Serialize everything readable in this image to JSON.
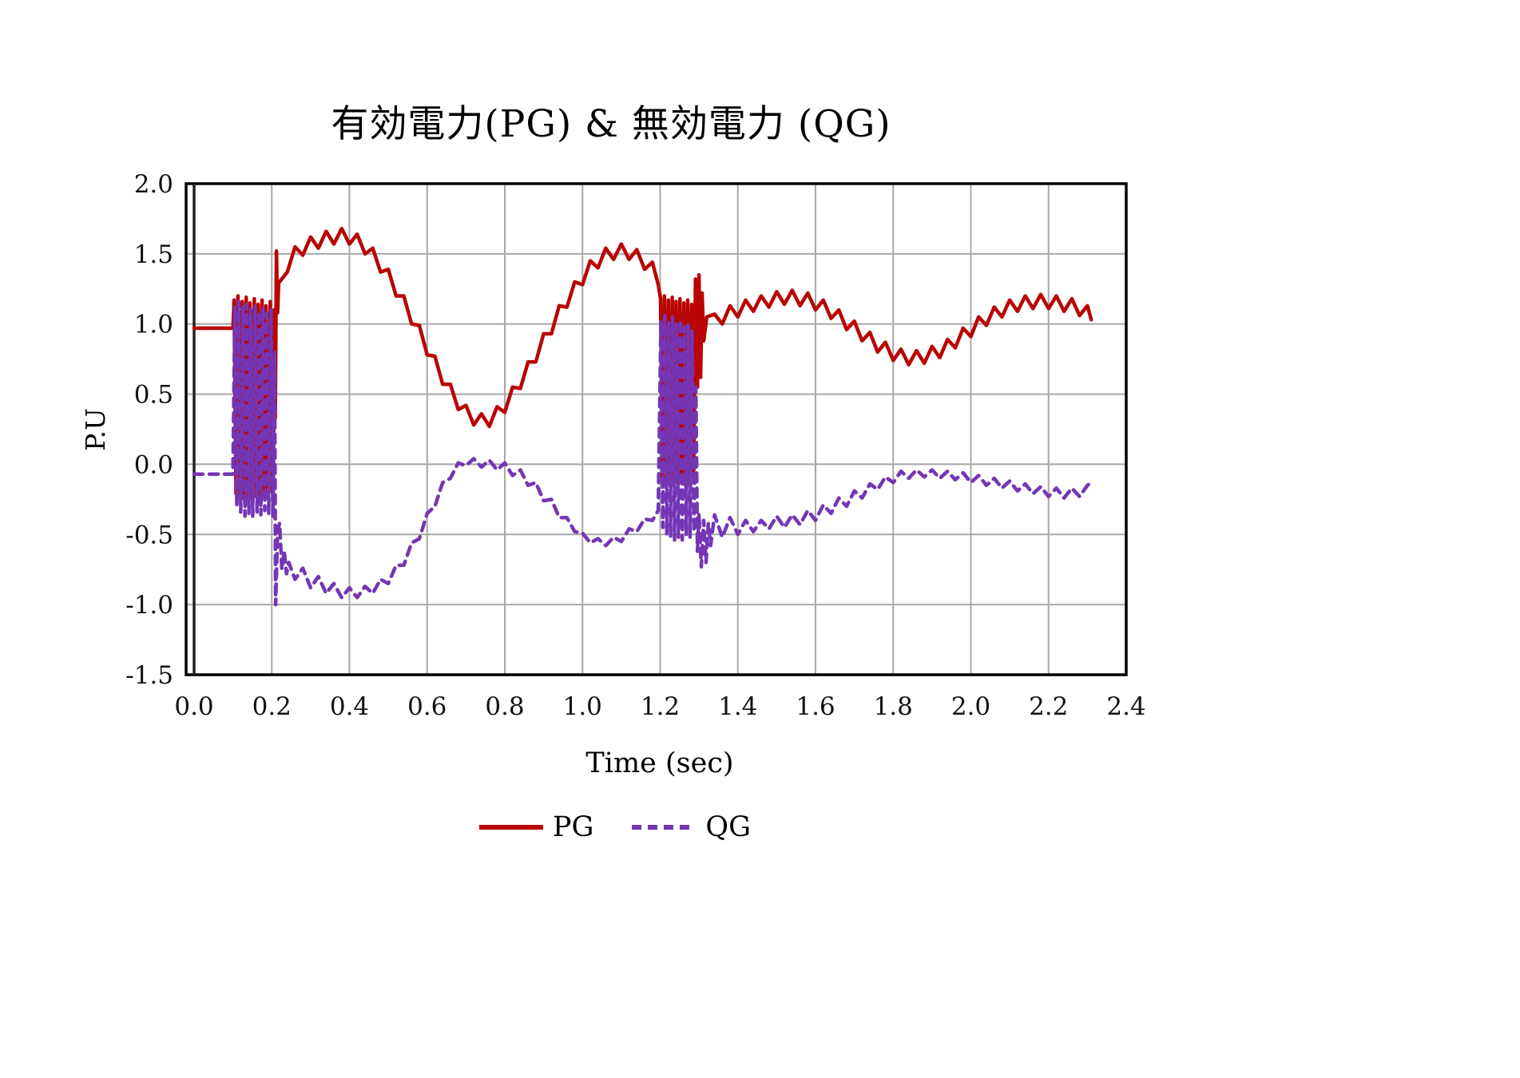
{
  "page": {
    "background": "#ffffff"
  },
  "title": "有効電力(PG) & 無効電力 (QG)",
  "chart_data": {
    "type": "line",
    "title": "有効電力(PG) & 無効電力 (QG)",
    "xlabel": "Time (sec)",
    "ylabel": "P.U",
    "xlim": [
      0.0,
      2.4
    ],
    "ylim": [
      -1.5,
      2.0
    ],
    "x_ticks": [
      "0.0",
      "0.2",
      "0.4",
      "0.6",
      "0.8",
      "1.0",
      "1.2",
      "1.4",
      "1.6",
      "1.8",
      "2.0",
      "2.2",
      "2.4"
    ],
    "y_ticks": [
      "2.0",
      "1.5",
      "1.0",
      "0.5",
      "0.0",
      "-0.5",
      "-1.0",
      "-1.5"
    ],
    "grid": true,
    "grid_color": "#a8a8a8",
    "border_color": "#000000",
    "legend_position": "bottom",
    "series": [
      {
        "name": "PG",
        "color": "#b90504",
        "style": "solid",
        "width": 4.5,
        "points": [
          [
            0.0,
            0.97
          ],
          [
            0.06,
            0.97
          ],
          [
            0.1,
            0.97
          ],
          [
            0.103,
            1.17
          ],
          [
            0.108,
            -0.21
          ],
          [
            0.113,
            1.2
          ],
          [
            0.118,
            -0.23
          ],
          [
            0.124,
            1.16
          ],
          [
            0.129,
            -0.25
          ],
          [
            0.134,
            1.19
          ],
          [
            0.139,
            -0.24
          ],
          [
            0.144,
            1.15
          ],
          [
            0.149,
            -0.25
          ],
          [
            0.155,
            1.18
          ],
          [
            0.16,
            -0.23
          ],
          [
            0.165,
            1.14
          ],
          [
            0.17,
            -0.25
          ],
          [
            0.175,
            1.17
          ],
          [
            0.18,
            -0.22
          ],
          [
            0.185,
            1.13
          ],
          [
            0.19,
            -0.24
          ],
          [
            0.196,
            1.16
          ],
          [
            0.201,
            -0.2
          ],
          [
            0.206,
            1.1
          ],
          [
            0.209,
            0.33
          ],
          [
            0.212,
            1.52
          ],
          [
            0.215,
            1.08
          ],
          [
            0.218,
            1.3
          ],
          [
            0.22,
            1.3
          ],
          [
            0.24,
            1.37
          ],
          [
            0.26,
            1.55
          ],
          [
            0.28,
            1.49
          ],
          [
            0.3,
            1.62
          ],
          [
            0.32,
            1.54
          ],
          [
            0.34,
            1.66
          ],
          [
            0.36,
            1.57
          ],
          [
            0.38,
            1.68
          ],
          [
            0.4,
            1.57
          ],
          [
            0.42,
            1.64
          ],
          [
            0.44,
            1.5
          ],
          [
            0.46,
            1.54
          ],
          [
            0.48,
            1.37
          ],
          [
            0.5,
            1.39
          ],
          [
            0.52,
            1.2
          ],
          [
            0.54,
            1.2
          ],
          [
            0.56,
            1.0
          ],
          [
            0.58,
            0.99
          ],
          [
            0.6,
            0.78
          ],
          [
            0.62,
            0.77
          ],
          [
            0.64,
            0.57
          ],
          [
            0.66,
            0.57
          ],
          [
            0.68,
            0.39
          ],
          [
            0.7,
            0.42
          ],
          [
            0.72,
            0.28
          ],
          [
            0.74,
            0.36
          ],
          [
            0.76,
            0.27
          ],
          [
            0.78,
            0.41
          ],
          [
            0.8,
            0.37
          ],
          [
            0.82,
            0.55
          ],
          [
            0.84,
            0.54
          ],
          [
            0.86,
            0.73
          ],
          [
            0.88,
            0.73
          ],
          [
            0.9,
            0.93
          ],
          [
            0.92,
            0.93
          ],
          [
            0.94,
            1.13
          ],
          [
            0.96,
            1.12
          ],
          [
            0.98,
            1.3
          ],
          [
            1.0,
            1.28
          ],
          [
            1.02,
            1.45
          ],
          [
            1.04,
            1.4
          ],
          [
            1.06,
            1.54
          ],
          [
            1.08,
            1.46
          ],
          [
            1.1,
            1.57
          ],
          [
            1.12,
            1.46
          ],
          [
            1.14,
            1.53
          ],
          [
            1.16,
            1.39
          ],
          [
            1.18,
            1.44
          ],
          [
            1.195,
            1.28
          ],
          [
            1.201,
            1.18
          ],
          [
            1.206,
            -0.1
          ],
          [
            1.211,
            1.2
          ],
          [
            1.216,
            -0.13
          ],
          [
            1.221,
            1.17
          ],
          [
            1.226,
            -0.15
          ],
          [
            1.231,
            1.19
          ],
          [
            1.236,
            -0.14
          ],
          [
            1.241,
            1.16
          ],
          [
            1.246,
            -0.15
          ],
          [
            1.251,
            1.18
          ],
          [
            1.256,
            -0.13
          ],
          [
            1.261,
            1.15
          ],
          [
            1.266,
            -0.15
          ],
          [
            1.271,
            1.17
          ],
          [
            1.276,
            -0.12
          ],
          [
            1.281,
            1.14
          ],
          [
            1.286,
            -0.1
          ],
          [
            1.291,
            1.32
          ],
          [
            1.296,
            0.55
          ],
          [
            1.3,
            1.35
          ],
          [
            1.304,
            0.62
          ],
          [
            1.308,
            1.22
          ],
          [
            1.312,
            0.88
          ],
          [
            1.32,
            1.05
          ],
          [
            1.34,
            1.07
          ],
          [
            1.36,
            1.0
          ],
          [
            1.38,
            1.13
          ],
          [
            1.4,
            1.05
          ],
          [
            1.42,
            1.17
          ],
          [
            1.44,
            1.09
          ],
          [
            1.46,
            1.2
          ],
          [
            1.48,
            1.12
          ],
          [
            1.5,
            1.23
          ],
          [
            1.52,
            1.14
          ],
          [
            1.54,
            1.24
          ],
          [
            1.56,
            1.13
          ],
          [
            1.58,
            1.22
          ],
          [
            1.6,
            1.1
          ],
          [
            1.62,
            1.17
          ],
          [
            1.64,
            1.04
          ],
          [
            1.66,
            1.1
          ],
          [
            1.68,
            0.96
          ],
          [
            1.7,
            1.02
          ],
          [
            1.72,
            0.88
          ],
          [
            1.74,
            0.94
          ],
          [
            1.76,
            0.8
          ],
          [
            1.78,
            0.87
          ],
          [
            1.8,
            0.74
          ],
          [
            1.82,
            0.82
          ],
          [
            1.84,
            0.71
          ],
          [
            1.86,
            0.81
          ],
          [
            1.88,
            0.72
          ],
          [
            1.9,
            0.84
          ],
          [
            1.92,
            0.76
          ],
          [
            1.94,
            0.89
          ],
          [
            1.96,
            0.83
          ],
          [
            1.98,
            0.97
          ],
          [
            2.0,
            0.91
          ],
          [
            2.02,
            1.05
          ],
          [
            2.04,
            0.99
          ],
          [
            2.06,
            1.12
          ],
          [
            2.08,
            1.05
          ],
          [
            2.1,
            1.17
          ],
          [
            2.12,
            1.09
          ],
          [
            2.14,
            1.2
          ],
          [
            2.16,
            1.11
          ],
          [
            2.18,
            1.21
          ],
          [
            2.2,
            1.11
          ],
          [
            2.22,
            1.2
          ],
          [
            2.24,
            1.09
          ],
          [
            2.26,
            1.18
          ],
          [
            2.28,
            1.06
          ],
          [
            2.3,
            1.13
          ],
          [
            2.31,
            1.03
          ]
        ]
      },
      {
        "name": "QG",
        "color": "#7436b4",
        "style": "dashed",
        "width": 4.5,
        "points": [
          [
            0.0,
            -0.07
          ],
          [
            0.06,
            -0.07
          ],
          [
            0.1,
            -0.07
          ],
          [
            0.105,
            1.12
          ],
          [
            0.11,
            -0.3
          ],
          [
            0.115,
            1.16
          ],
          [
            0.12,
            -0.34
          ],
          [
            0.126,
            1.12
          ],
          [
            0.131,
            -0.37
          ],
          [
            0.136,
            1.14
          ],
          [
            0.141,
            -0.35
          ],
          [
            0.146,
            1.1
          ],
          [
            0.151,
            -0.37
          ],
          [
            0.157,
            1.13
          ],
          [
            0.162,
            -0.34
          ],
          [
            0.167,
            1.09
          ],
          [
            0.172,
            -0.36
          ],
          [
            0.177,
            1.12
          ],
          [
            0.182,
            -0.33
          ],
          [
            0.187,
            1.08
          ],
          [
            0.192,
            -0.35
          ],
          [
            0.198,
            1.1
          ],
          [
            0.203,
            -0.38
          ],
          [
            0.207,
            0.8
          ],
          [
            0.21,
            -1.0
          ],
          [
            0.215,
            -0.48
          ],
          [
            0.22,
            -0.42
          ],
          [
            0.226,
            -0.75
          ],
          [
            0.232,
            -0.62
          ],
          [
            0.238,
            -0.78
          ],
          [
            0.244,
            -0.7
          ],
          [
            0.26,
            -0.82
          ],
          [
            0.28,
            -0.74
          ],
          [
            0.3,
            -0.88
          ],
          [
            0.32,
            -0.8
          ],
          [
            0.34,
            -0.92
          ],
          [
            0.36,
            -0.85
          ],
          [
            0.38,
            -0.95
          ],
          [
            0.4,
            -0.88
          ],
          [
            0.42,
            -0.95
          ],
          [
            0.44,
            -0.87
          ],
          [
            0.46,
            -0.92
          ],
          [
            0.48,
            -0.82
          ],
          [
            0.5,
            -0.85
          ],
          [
            0.52,
            -0.72
          ],
          [
            0.54,
            -0.72
          ],
          [
            0.56,
            -0.56
          ],
          [
            0.58,
            -0.53
          ],
          [
            0.6,
            -0.35
          ],
          [
            0.62,
            -0.3
          ],
          [
            0.64,
            -0.13
          ],
          [
            0.66,
            -0.1
          ],
          [
            0.68,
            0.01
          ],
          [
            0.7,
            -0.01
          ],
          [
            0.72,
            0.04
          ],
          [
            0.74,
            -0.02
          ],
          [
            0.76,
            0.03
          ],
          [
            0.78,
            -0.04
          ],
          [
            0.8,
            0.01
          ],
          [
            0.82,
            -0.08
          ],
          [
            0.84,
            -0.04
          ],
          [
            0.86,
            -0.15
          ],
          [
            0.88,
            -0.13
          ],
          [
            0.9,
            -0.26
          ],
          [
            0.92,
            -0.25
          ],
          [
            0.94,
            -0.38
          ],
          [
            0.96,
            -0.38
          ],
          [
            0.98,
            -0.48
          ],
          [
            1.0,
            -0.49
          ],
          [
            1.02,
            -0.56
          ],
          [
            1.04,
            -0.53
          ],
          [
            1.06,
            -0.58
          ],
          [
            1.08,
            -0.52
          ],
          [
            1.1,
            -0.55
          ],
          [
            1.12,
            -0.46
          ],
          [
            1.14,
            -0.48
          ],
          [
            1.16,
            -0.39
          ],
          [
            1.18,
            -0.4
          ],
          [
            1.195,
            -0.33
          ],
          [
            1.202,
            1.02
          ],
          [
            1.207,
            -0.45
          ],
          [
            1.212,
            1.06
          ],
          [
            1.217,
            -0.5
          ],
          [
            1.222,
            1.02
          ],
          [
            1.227,
            -0.52
          ],
          [
            1.232,
            1.05
          ],
          [
            1.237,
            -0.54
          ],
          [
            1.242,
            1.0
          ],
          [
            1.247,
            -0.52
          ],
          [
            1.252,
            1.03
          ],
          [
            1.257,
            -0.54
          ],
          [
            1.262,
            0.98
          ],
          [
            1.267,
            -0.5
          ],
          [
            1.272,
            1.0
          ],
          [
            1.277,
            -0.52
          ],
          [
            1.282,
            0.95
          ],
          [
            1.287,
            -0.48
          ],
          [
            1.292,
            0.55
          ],
          [
            1.296,
            -0.62
          ],
          [
            1.3,
            -0.35
          ],
          [
            1.306,
            -0.73
          ],
          [
            1.312,
            -0.4
          ],
          [
            1.318,
            -0.7
          ],
          [
            1.324,
            -0.42
          ],
          [
            1.33,
            -0.58
          ],
          [
            1.34,
            -0.36
          ],
          [
            1.36,
            -0.52
          ],
          [
            1.38,
            -0.38
          ],
          [
            1.4,
            -0.5
          ],
          [
            1.42,
            -0.4
          ],
          [
            1.44,
            -0.48
          ],
          [
            1.46,
            -0.4
          ],
          [
            1.48,
            -0.46
          ],
          [
            1.5,
            -0.37
          ],
          [
            1.52,
            -0.45
          ],
          [
            1.54,
            -0.36
          ],
          [
            1.56,
            -0.43
          ],
          [
            1.58,
            -0.33
          ],
          [
            1.6,
            -0.4
          ],
          [
            1.62,
            -0.29
          ],
          [
            1.64,
            -0.35
          ],
          [
            1.66,
            -0.24
          ],
          [
            1.68,
            -0.3
          ],
          [
            1.7,
            -0.19
          ],
          [
            1.72,
            -0.24
          ],
          [
            1.74,
            -0.14
          ],
          [
            1.76,
            -0.18
          ],
          [
            1.78,
            -0.09
          ],
          [
            1.8,
            -0.13
          ],
          [
            1.82,
            -0.05
          ],
          [
            1.84,
            -0.1
          ],
          [
            1.86,
            -0.04
          ],
          [
            1.88,
            -0.09
          ],
          [
            1.9,
            -0.04
          ],
          [
            1.92,
            -0.1
          ],
          [
            1.94,
            -0.05
          ],
          [
            1.96,
            -0.11
          ],
          [
            1.98,
            -0.06
          ],
          [
            2.0,
            -0.13
          ],
          [
            2.02,
            -0.08
          ],
          [
            2.04,
            -0.15
          ],
          [
            2.06,
            -0.1
          ],
          [
            2.08,
            -0.17
          ],
          [
            2.1,
            -0.12
          ],
          [
            2.12,
            -0.19
          ],
          [
            2.14,
            -0.14
          ],
          [
            2.16,
            -0.21
          ],
          [
            2.18,
            -0.16
          ],
          [
            2.2,
            -0.23
          ],
          [
            2.22,
            -0.17
          ],
          [
            2.24,
            -0.24
          ],
          [
            2.26,
            -0.17
          ],
          [
            2.28,
            -0.23
          ],
          [
            2.3,
            -0.15
          ],
          [
            2.31,
            -0.13
          ]
        ]
      }
    ]
  }
}
